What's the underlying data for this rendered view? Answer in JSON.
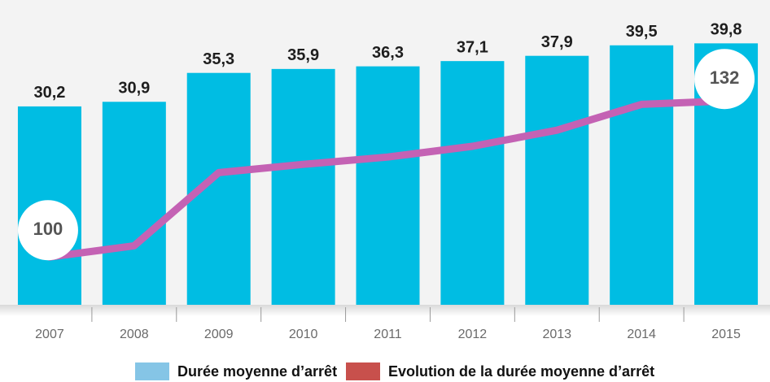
{
  "chart_data": {
    "type": "bar_line",
    "categories": [
      "2007",
      "2008",
      "2009",
      "2010",
      "2011",
      "2012",
      "2013",
      "2014",
      "2015"
    ],
    "series": [
      {
        "name": "Durée moyenne d’arrêt",
        "type": "bar",
        "color": "#00bde3",
        "legend_color": "#85c5e6",
        "values": [
          30.2,
          30.9,
          35.3,
          35.9,
          36.3,
          37.1,
          37.9,
          39.5,
          39.8
        ],
        "value_labels": [
          "30,2",
          "30,9",
          "35,3",
          "35,9",
          "36,3",
          "37,1",
          "37,9",
          "39,5",
          "39,8"
        ]
      },
      {
        "name": "Evolution de la durée moyenne d’arrêt",
        "type": "line",
        "axis": "y2",
        "color": "#c462b4",
        "legend_color": "#c8504c",
        "values": [
          100,
          102.3,
          117.3,
          119,
          120.5,
          122.7,
          126,
          131.3,
          132
        ]
      }
    ],
    "ylim": [
      0,
      46.4
    ],
    "y2lim": [
      90.2,
      152.7
    ]
  }
}
